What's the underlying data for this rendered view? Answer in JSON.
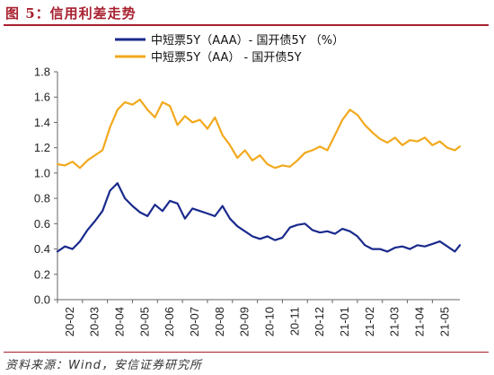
{
  "figure_title": "图 5：信用利差走势",
  "source": "资料来源：Wind，安信证券研究所",
  "chart_data": {
    "type": "line",
    "ylim": [
      0,
      1.8
    ],
    "yticks": [
      "0.0",
      "0.2",
      "0.4",
      "0.6",
      "0.8",
      "1.0",
      "1.2",
      "1.4",
      "1.6",
      "1.8"
    ],
    "categories": [
      "20-02",
      "20-03",
      "20-04",
      "20-05",
      "20-06",
      "20-07",
      "20-08",
      "20-09",
      "20-10",
      "20-11",
      "20-12",
      "21-01",
      "21-02",
      "21-03",
      "21-04",
      "21-05"
    ],
    "x_start": 0,
    "x_end": 16.1,
    "legend_position": "top-center",
    "grid": false,
    "colors": {
      "aaa": "#1a2a8c",
      "aa": "#f2a91d"
    },
    "series": [
      {
        "name": "中短票5Y（AAA）- 国开债5Y （%）",
        "color": "#1a2a8c",
        "x": [
          0,
          0.3,
          0.6,
          0.9,
          1.2,
          1.5,
          1.8,
          2.1,
          2.4,
          2.7,
          3.0,
          3.3,
          3.6,
          3.9,
          4.2,
          4.5,
          4.8,
          5.1,
          5.4,
          5.7,
          6.0,
          6.3,
          6.6,
          6.9,
          7.2,
          7.5,
          7.8,
          8.1,
          8.4,
          8.7,
          9.0,
          9.3,
          9.6,
          9.9,
          10.2,
          10.5,
          10.8,
          11.1,
          11.4,
          11.7,
          12.0,
          12.3,
          12.6,
          12.9,
          13.2,
          13.5,
          13.8,
          14.1,
          14.4,
          14.7,
          15.0,
          15.3,
          15.6,
          15.9,
          16.1
        ],
        "values": [
          0.38,
          0.42,
          0.4,
          0.46,
          0.55,
          0.62,
          0.7,
          0.86,
          0.92,
          0.8,
          0.74,
          0.69,
          0.66,
          0.75,
          0.7,
          0.78,
          0.76,
          0.64,
          0.72,
          0.7,
          0.68,
          0.66,
          0.74,
          0.64,
          0.58,
          0.54,
          0.5,
          0.48,
          0.5,
          0.47,
          0.49,
          0.57,
          0.59,
          0.6,
          0.55,
          0.53,
          0.54,
          0.52,
          0.56,
          0.54,
          0.5,
          0.43,
          0.4,
          0.4,
          0.38,
          0.41,
          0.42,
          0.4,
          0.43,
          0.42,
          0.44,
          0.46,
          0.42,
          0.38,
          0.43
        ]
      },
      {
        "name": "中短票5Y（AA） - 国开债5Y",
        "color": "#f2a91d",
        "x": [
          0,
          0.3,
          0.6,
          0.9,
          1.2,
          1.5,
          1.8,
          2.1,
          2.4,
          2.7,
          3.0,
          3.3,
          3.6,
          3.9,
          4.2,
          4.5,
          4.8,
          5.1,
          5.4,
          5.7,
          6.0,
          6.3,
          6.6,
          6.9,
          7.2,
          7.5,
          7.8,
          8.1,
          8.4,
          8.7,
          9.0,
          9.3,
          9.6,
          9.9,
          10.2,
          10.5,
          10.8,
          11.1,
          11.4,
          11.7,
          12.0,
          12.3,
          12.6,
          12.9,
          13.2,
          13.5,
          13.8,
          14.1,
          14.4,
          14.7,
          15.0,
          15.3,
          15.6,
          15.9,
          16.1
        ],
        "values": [
          1.07,
          1.06,
          1.09,
          1.04,
          1.1,
          1.14,
          1.18,
          1.36,
          1.5,
          1.56,
          1.54,
          1.58,
          1.5,
          1.44,
          1.56,
          1.53,
          1.38,
          1.45,
          1.4,
          1.42,
          1.35,
          1.44,
          1.3,
          1.22,
          1.12,
          1.18,
          1.1,
          1.14,
          1.07,
          1.04,
          1.06,
          1.05,
          1.1,
          1.16,
          1.18,
          1.21,
          1.18,
          1.3,
          1.42,
          1.5,
          1.46,
          1.38,
          1.32,
          1.27,
          1.24,
          1.28,
          1.22,
          1.26,
          1.25,
          1.28,
          1.22,
          1.25,
          1.2,
          1.18,
          1.21
        ]
      }
    ]
  }
}
